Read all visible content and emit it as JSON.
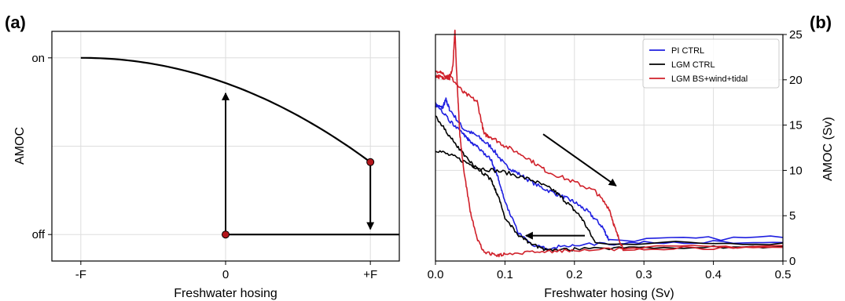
{
  "panel_a": {
    "label": "(a)",
    "xlabel": "Freshwater hosing",
    "ylabel": "AMOC",
    "xticks": [
      "-F",
      "0",
      "+F"
    ],
    "yticks": [
      "off",
      "on"
    ],
    "colors": {
      "curve": "#000000",
      "marker": "#b3161b",
      "grid": "#dddddd"
    }
  },
  "panel_b": {
    "label": "(b)",
    "xlabel": "Freshwater hosing (Sv)",
    "ylabel": "AMOC (Sv)",
    "xticks": [
      "0.0",
      "0.1",
      "0.2",
      "0.3",
      "0.4",
      "0.5"
    ],
    "yticks": [
      "0",
      "5",
      "10",
      "15",
      "20",
      "25"
    ]
  },
  "chart_data": [
    {
      "type": "line",
      "panel": "a",
      "xlabel": "Freshwater hosing",
      "ylabel": "AMOC",
      "xlim": [
        -1.2,
        1.2
      ],
      "ylim": [
        -0.15,
        1.15
      ],
      "tick_labels_x": [
        "-F",
        "0",
        "+F"
      ],
      "tick_labels_y": [
        "off",
        "on"
      ],
      "grid": true,
      "series": [
        {
          "role": "upper-branch",
          "x": [
            -1.0,
            -0.5,
            0.0,
            0.5,
            1.0
          ],
          "y": [
            1.0,
            0.95,
            0.86,
            0.69,
            0.41
          ]
        },
        {
          "role": "lower-branch",
          "x": [
            0.0,
            0.5,
            1.0,
            1.2
          ],
          "y": [
            0.0,
            0.0,
            0.0,
            0.0
          ]
        }
      ],
      "markers": [
        {
          "x": 0.0,
          "y": 0.0
        },
        {
          "x": 1.0,
          "y": 0.41
        }
      ],
      "arrows": [
        {
          "x": [
            0.0,
            0.0
          ],
          "y": [
            0.0,
            0.86
          ],
          "direction": "up"
        },
        {
          "x": [
            1.0,
            1.0
          ],
          "y": [
            0.41,
            0.0
          ],
          "direction": "down"
        }
      ]
    },
    {
      "type": "line",
      "panel": "b",
      "xlabel": "Freshwater hosing (Sv)",
      "ylabel": "AMOC (Sv)",
      "xlim": [
        0.0,
        0.5
      ],
      "ylim": [
        0,
        25
      ],
      "xticks": [
        0.0,
        0.1,
        0.2,
        0.3,
        0.4,
        0.5
      ],
      "yticks": [
        0,
        5,
        10,
        15,
        20,
        25
      ],
      "grid": true,
      "legend_position": "top-right",
      "series": [
        {
          "name": "PI CTRL",
          "color": "#1f1fe0",
          "ramp_up": {
            "x": [
              0.0,
              0.01,
              0.015,
              0.02,
              0.04,
              0.06,
              0.08,
              0.1,
              0.12,
              0.15,
              0.18,
              0.2,
              0.22,
              0.24,
              0.25,
              0.5
            ],
            "y": [
              17.2,
              16.9,
              17.8,
              16.8,
              14.6,
              13.8,
              12.6,
              10.6,
              9.6,
              8.2,
              7.2,
              6.5,
              5.4,
              3.8,
              2.3,
              2.6
            ]
          },
          "ramp_down": {
            "x": [
              0.5,
              0.3,
              0.2,
              0.16,
              0.14,
              0.12,
              0.1,
              0.09,
              0.08,
              0.06,
              0.05,
              0.04,
              0.02,
              0.0
            ],
            "y": [
              2.2,
              2.0,
              1.8,
              1.4,
              1.7,
              3.0,
              6.5,
              9.2,
              11.2,
              12.6,
              13.2,
              14.0,
              15.5,
              17.5
            ]
          }
        },
        {
          "name": "LGM CTRL",
          "color": "#000000",
          "ramp_up": {
            "x": [
              0.0,
              0.03,
              0.06,
              0.1,
              0.14,
              0.17,
              0.19,
              0.21,
              0.23,
              0.5
            ],
            "y": [
              12.3,
              11.4,
              10.3,
              9.8,
              8.9,
              7.8,
              6.4,
              4.8,
              2.0,
              2.0
            ]
          },
          "ramp_down": {
            "x": [
              0.5,
              0.3,
              0.2,
              0.16,
              0.14,
              0.12,
              0.1,
              0.09,
              0.08,
              0.06,
              0.04,
              0.02,
              0.0
            ],
            "y": [
              1.6,
              1.5,
              1.3,
              1.2,
              1.8,
              2.8,
              4.8,
              7.2,
              9.0,
              10.2,
              11.8,
              13.8,
              16.0
            ]
          }
        },
        {
          "name": "LGM BS+wind+tidal",
          "color": "#d0202a",
          "ramp_up": {
            "x": [
              0.0,
              0.01,
              0.02,
              0.04,
              0.06,
              0.07,
              0.08,
              0.1,
              0.13,
              0.16,
              0.2,
              0.23,
              0.25,
              0.26,
              0.27,
              0.5
            ],
            "y": [
              20.5,
              20.2,
              20.5,
              18.6,
              17.6,
              14.0,
              13.7,
              12.7,
              11.5,
              9.9,
              8.7,
              7.7,
              5.8,
              3.2,
              1.4,
              1.7
            ]
          },
          "ramp_down": {
            "x": [
              0.5,
              0.3,
              0.2,
              0.15,
              0.1,
              0.09,
              0.07,
              0.06,
              0.05,
              0.04,
              0.035,
              0.033,
              0.03,
              0.028,
              0.025,
              0.02,
              0.01,
              0.0
            ],
            "y": [
              1.5,
              1.4,
              1.2,
              1.0,
              0.8,
              0.6,
              1.0,
              2.4,
              5.5,
              10.5,
              14.0,
              17.0,
              21.5,
              25.5,
              21.5,
              20.0,
              20.7,
              21.0
            ]
          }
        }
      ],
      "arrows": [
        {
          "from": [
            0.155,
            14.0
          ],
          "to": [
            0.26,
            8.3
          ]
        },
        {
          "from": [
            0.215,
            2.8
          ],
          "to": [
            0.13,
            2.8
          ]
        }
      ]
    }
  ]
}
